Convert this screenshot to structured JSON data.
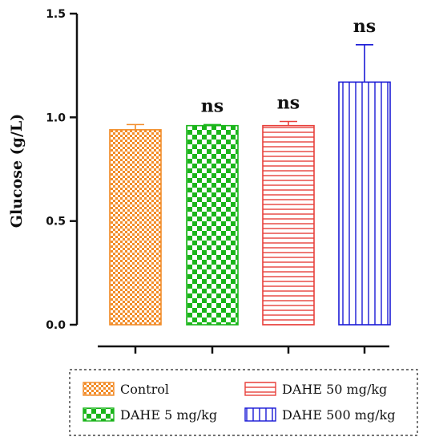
{
  "chart_data": {
    "type": "bar",
    "ylabel": "Glucose (g/L)",
    "ylim": [
      0,
      1.5
    ],
    "yticks": [
      "0.0",
      "0.5",
      "1.0",
      "1.5"
    ],
    "grid": false,
    "legend_placement": "bottom",
    "series": [
      {
        "name": "Control",
        "value": 0.94,
        "error": 0.025,
        "significance": "",
        "color": "#f28c28",
        "pattern": "checker-fine"
      },
      {
        "name": "DAHE 5 mg/kg",
        "value": 0.96,
        "error": 0.005,
        "significance": "ns",
        "color": "#1ab51a",
        "pattern": "checker-coarse"
      },
      {
        "name": "DAHE 50 mg/kg",
        "value": 0.96,
        "error": 0.02,
        "significance": "ns",
        "color": "#e8413c",
        "pattern": "horizontal-lines"
      },
      {
        "name": "DAHE 500 mg/kg",
        "value": 1.17,
        "error": 0.18,
        "significance": "ns",
        "color": "#1a1ad6",
        "pattern": "vertical-lines"
      }
    ]
  }
}
